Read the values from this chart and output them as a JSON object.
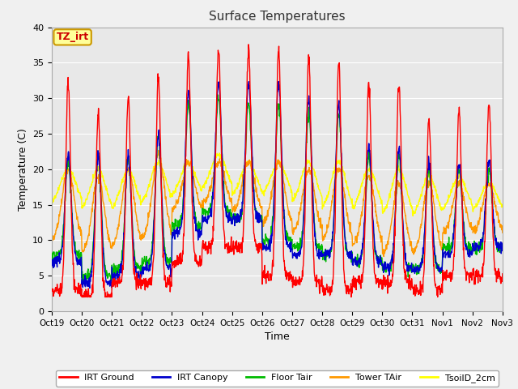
{
  "title": "Surface Temperatures",
  "xlabel": "Time",
  "ylabel": "Temperature (C)",
  "ylim": [
    0,
    40
  ],
  "background_color": "#f0f0f0",
  "plot_bg_color": "#e8e8e8",
  "series_colors": {
    "IRT Ground": "#ff0000",
    "IRT Canopy": "#0000cc",
    "Floor Tair": "#00bb00",
    "Tower TAir": "#ff9900",
    "TsoilD_2cm": "#ffff00"
  },
  "legend_labels": [
    "IRT Ground",
    "IRT Canopy",
    "Floor Tair",
    "Tower TAir",
    "TsoilD_2cm"
  ],
  "xtick_labels": [
    "Oct 19",
    "Oct 20",
    "Oct 21",
    "Oct 22",
    "Oct 23",
    "Oct 24",
    "Oct 25",
    "Oct 26",
    "Oct 27",
    "Oct 28",
    "Oct 29",
    "Oct 30",
    "Oct 31",
    "Nov 1",
    "Nov 2",
    "Nov 3"
  ],
  "annotation_text": "TZ_irt",
  "annotation_color": "#cc0000",
  "annotation_bg": "#ffff99",
  "annotation_border": "#cc9900",
  "num_days": 15,
  "points_per_day": 96,
  "day_peaks_ground": [
    32,
    28,
    30,
    33,
    36,
    37,
    37,
    37,
    36,
    35,
    32,
    32,
    27,
    28,
    29
  ],
  "day_peaks_canopy": [
    22,
    22,
    22,
    25,
    31,
    32,
    32,
    32,
    30,
    29,
    23,
    23,
    21,
    21,
    21
  ],
  "day_peaks_floor": [
    21,
    22,
    22,
    25,
    29,
    30,
    29,
    29,
    28,
    28,
    22,
    22,
    20,
    20,
    20
  ],
  "day_peaks_tower": [
    20,
    19,
    20,
    22,
    21,
    21,
    21,
    21,
    20,
    20,
    19,
    18,
    18,
    18,
    18
  ],
  "day_peaks_tsoil": [
    20,
    20,
    20,
    21,
    21,
    22,
    21,
    21,
    21,
    21,
    20,
    20,
    19,
    19,
    18
  ],
  "night_ground": [
    3,
    2,
    4,
    4,
    7,
    9,
    9,
    5,
    4,
    3,
    4,
    4,
    3,
    5,
    5
  ],
  "night_canopy": [
    7,
    4,
    5,
    6,
    11,
    13,
    13,
    9,
    8,
    8,
    7,
    6,
    6,
    8,
    9
  ],
  "night_floor": [
    8,
    5,
    6,
    7,
    12,
    14,
    13,
    10,
    9,
    8,
    7,
    6,
    6,
    9,
    9
  ],
  "night_tower": [
    10,
    8,
    9,
    10,
    14,
    15,
    14,
    12,
    11,
    10,
    9,
    8,
    8,
    11,
    11
  ],
  "night_tsoil": [
    15,
    14,
    14,
    15,
    16,
    17,
    16,
    16,
    15,
    14,
    14,
    13,
    13,
    14,
    14
  ]
}
